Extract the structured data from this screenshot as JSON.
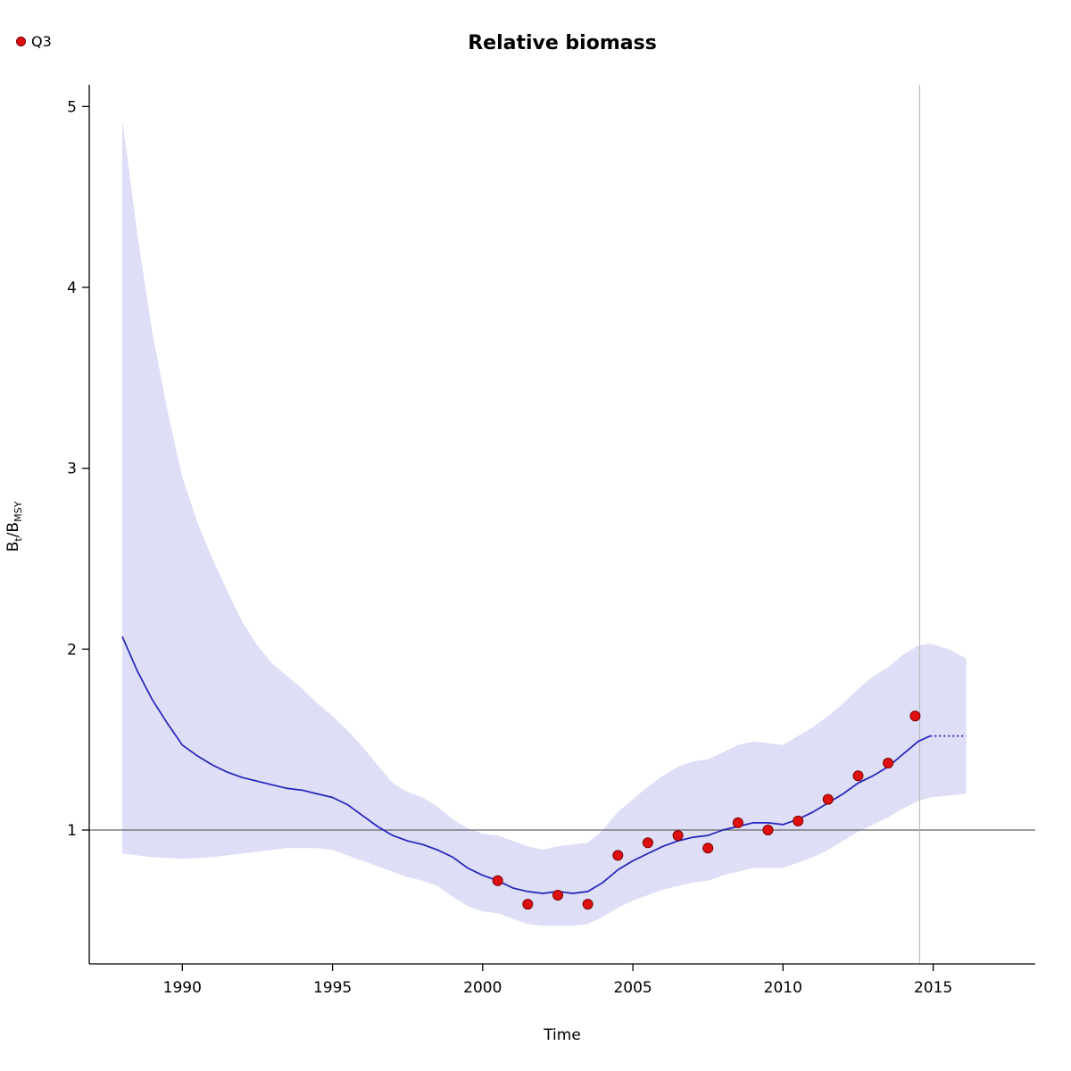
{
  "legend": {
    "label": "Q3"
  },
  "ylabel": {
    "b1": "B",
    "s1": "t",
    "b2": "/B",
    "s2": "MSY"
  },
  "chart_data": {
    "type": "line",
    "title": "Relative biomass",
    "xlabel": "Time",
    "ylabel": "B_t/B_MSY",
    "legend": [
      {
        "label": "Q3",
        "marker": "red-point"
      }
    ],
    "xlim": [
      1986.9,
      2018.4
    ],
    "ylim": [
      0.26,
      5.12
    ],
    "xticks": [
      1990,
      1995,
      2000,
      2005,
      2010,
      2015
    ],
    "yticks": [
      1,
      2,
      3,
      4,
      5
    ],
    "grid": false,
    "reference_line_y": 1.0,
    "vline_x": 2014.55,
    "colors": {
      "band": "#dedef6",
      "median_line": "#2222bd",
      "points": "#e01010",
      "points_border": "#7a0000",
      "reference_line": "#666666",
      "vline": "#b3b3b3",
      "axis": "#000000"
    },
    "band": {
      "x": [
        1988,
        1988.5,
        1989,
        1989.5,
        1990,
        1990.5,
        1991,
        1991.5,
        1992,
        1992.5,
        1993,
        1993.5,
        1994,
        1994.5,
        1995,
        1995.5,
        1996,
        1996.5,
        1997,
        1997.5,
        1998,
        1998.5,
        1999,
        1999.5,
        2000,
        2000.5,
        2001,
        2001.5,
        2002,
        2002.5,
        2003,
        2003.5,
        2004,
        2004.5,
        2005,
        2005.5,
        2006,
        2006.5,
        2007,
        2007.5,
        2008,
        2008.5,
        2009,
        2009.5,
        2010,
        2010.5,
        2011,
        2011.5,
        2012,
        2012.5,
        2013,
        2013.5,
        2014,
        2014.5,
        2014.9,
        2015.5,
        2016.1
      ],
      "upper": [
        4.93,
        4.3,
        3.75,
        3.32,
        2.95,
        2.7,
        2.5,
        2.32,
        2.15,
        2.02,
        1.92,
        1.85,
        1.78,
        1.7,
        1.63,
        1.55,
        1.46,
        1.36,
        1.26,
        1.21,
        1.18,
        1.13,
        1.06,
        1.01,
        0.98,
        0.97,
        0.94,
        0.91,
        0.89,
        0.91,
        0.92,
        0.93,
        1.0,
        1.1,
        1.17,
        1.24,
        1.3,
        1.35,
        1.38,
        1.39,
        1.43,
        1.47,
        1.49,
        1.48,
        1.47,
        1.52,
        1.57,
        1.63,
        1.7,
        1.78,
        1.85,
        1.9,
        1.97,
        2.02,
        2.03,
        2.0,
        1.95
      ],
      "lower": [
        0.87,
        0.86,
        0.85,
        0.845,
        0.84,
        0.845,
        0.85,
        0.86,
        0.87,
        0.88,
        0.89,
        0.9,
        0.9,
        0.9,
        0.89,
        0.86,
        0.83,
        0.8,
        0.77,
        0.74,
        0.72,
        0.69,
        0.63,
        0.58,
        0.55,
        0.54,
        0.51,
        0.48,
        0.47,
        0.47,
        0.47,
        0.48,
        0.52,
        0.57,
        0.61,
        0.64,
        0.67,
        0.69,
        0.71,
        0.72,
        0.75,
        0.77,
        0.79,
        0.79,
        0.79,
        0.82,
        0.85,
        0.89,
        0.94,
        0.99,
        1.03,
        1.07,
        1.12,
        1.16,
        1.18,
        1.19,
        1.2
      ]
    },
    "median_line": {
      "x": [
        1988,
        1988.5,
        1989,
        1989.5,
        1990,
        1990.5,
        1991,
        1991.5,
        1992,
        1992.5,
        1993,
        1993.5,
        1994,
        1994.5,
        1995,
        1995.5,
        1996,
        1996.5,
        1997,
        1997.5,
        1998,
        1998.5,
        1999,
        1999.5,
        2000,
        2000.5,
        2001,
        2001.5,
        2002,
        2002.5,
        2003,
        2003.5,
        2004,
        2004.5,
        2005,
        2005.5,
        2006,
        2006.5,
        2007,
        2007.5,
        2008,
        2008.5,
        2009,
        2009.5,
        2010,
        2010.5,
        2011,
        2011.5,
        2012,
        2012.5,
        2013,
        2013.5,
        2014,
        2014.5,
        2014.9
      ],
      "y": [
        2.07,
        1.88,
        1.72,
        1.59,
        1.47,
        1.41,
        1.36,
        1.32,
        1.29,
        1.27,
        1.25,
        1.23,
        1.22,
        1.2,
        1.18,
        1.14,
        1.08,
        1.02,
        0.97,
        0.94,
        0.92,
        0.89,
        0.85,
        0.79,
        0.75,
        0.72,
        0.68,
        0.66,
        0.65,
        0.66,
        0.65,
        0.66,
        0.71,
        0.78,
        0.83,
        0.87,
        0.91,
        0.94,
        0.96,
        0.97,
        1.0,
        1.02,
        1.04,
        1.04,
        1.03,
        1.06,
        1.1,
        1.15,
        1.2,
        1.26,
        1.3,
        1.35,
        1.42,
        1.49,
        1.52
      ]
    },
    "forecast_line": {
      "x": [
        2014.9,
        2016.1
      ],
      "y": [
        1.52,
        1.52
      ]
    },
    "observations": {
      "name": "Q3",
      "x": [
        2000.5,
        2001.5,
        2002.5,
        2003.5,
        2004.5,
        2005.5,
        2006.5,
        2007.5,
        2008.5,
        2009.5,
        2010.5,
        2011.5,
        2012.5,
        2013.5,
        2014.4
      ],
      "y": [
        0.72,
        0.59,
        0.64,
        0.59,
        0.86,
        0.93,
        0.97,
        0.9,
        1.04,
        1.0,
        1.05,
        1.17,
        1.3,
        1.37,
        1.63
      ]
    }
  }
}
